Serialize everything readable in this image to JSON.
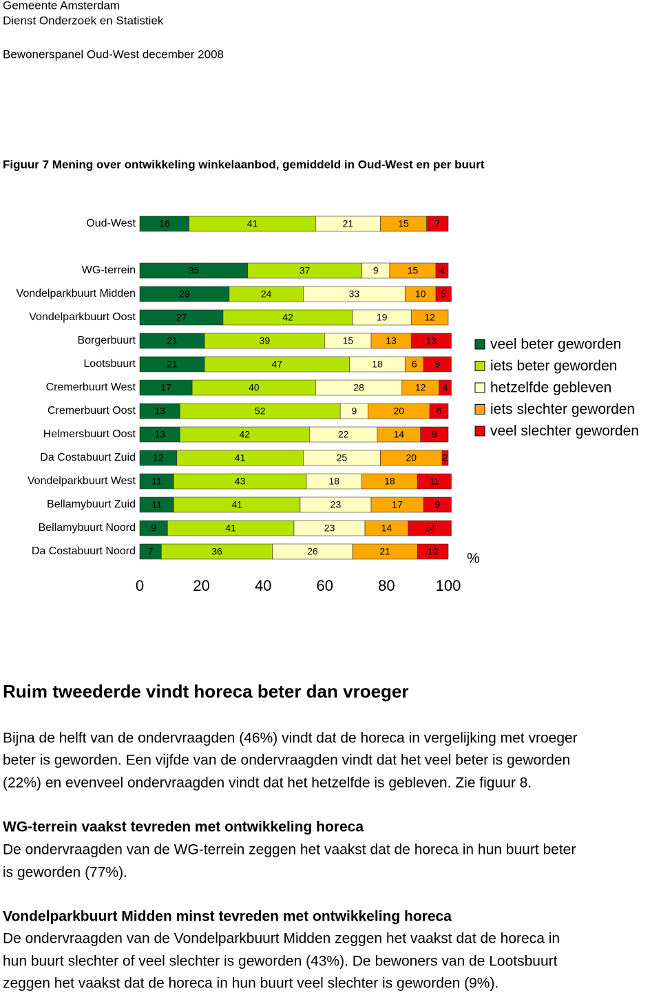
{
  "header": {
    "organization": "Gemeente Amsterdam",
    "department": "Dienst Onderzoek en Statistiek",
    "report": "Bewonerspanel Oud-West december 2008"
  },
  "chart_data": {
    "type": "bar",
    "orientation": "horizontal",
    "stacked": true,
    "title": "Figuur 7 Mening over ontwikkeling winkelaanbod, gemiddeld in Oud-West en per buurt",
    "x_label": "%",
    "categories": [
      "Oud-West",
      "WG-terrein",
      "Vondelparkbuurt Midden",
      "Vondelparkbuurt Oost",
      "Borgerbuurt",
      "Lootsbuurt",
      "Cremerbuurt West",
      "Cremerbuurt Oost",
      "Helmersbuurt Oost",
      "Da Costabuurt Zuid",
      "Vondelparkbuurt West",
      "Bellamybuurt Zuid",
      "Bellamybuurt Noord",
      "Da Costabuurt Noord"
    ],
    "series": [
      {
        "name": "veel beter geworden",
        "color": "#006a33",
        "values": [
          16,
          35,
          29,
          27,
          21,
          21,
          17,
          13,
          13,
          12,
          11,
          11,
          9,
          7
        ]
      },
      {
        "name": "iets beter geworden",
        "color": "#b5e300",
        "values": [
          41,
          37,
          24,
          42,
          39,
          47,
          40,
          52,
          42,
          41,
          43,
          41,
          41,
          36
        ]
      },
      {
        "name": "hetzelfde gebleven",
        "color": "#ffffc2",
        "values": [
          21,
          9,
          33,
          19,
          15,
          18,
          28,
          9,
          22,
          25,
          18,
          23,
          23,
          26
        ]
      },
      {
        "name": "iets slechter geworden",
        "color": "#ffa800",
        "values": [
          15,
          15,
          10,
          12,
          13,
          6,
          12,
          20,
          14,
          20,
          18,
          17,
          14,
          21
        ]
      },
      {
        "name": "veel slechter geworden",
        "color": "#e8000b",
        "values": [
          7,
          4,
          5,
          0,
          13,
          9,
          4,
          6,
          9,
          2,
          11,
          9,
          14,
          10
        ]
      }
    ],
    "xlim": [
      0,
      100
    ],
    "xticks": [
      0,
      20,
      40,
      60,
      80,
      100
    ],
    "grid": false,
    "legend": "right"
  },
  "sections": [
    {
      "heading": "Ruim tweederde vindt horeca beter dan vroeger",
      "lines": [
        "Bijna de helft van de ondervraagden (46%) vindt dat de horeca in vergelijking met vroeger",
        "beter is geworden. Een vijfde van de ondervraagden vindt dat het veel beter is geworden",
        "(22%) en evenveel ondervraagden vindt dat het hetzelfde is gebleven. Zie figuur 8."
      ]
    },
    {
      "heading": "WG-terrein vaakst tevreden met ontwikkeling horeca",
      "lines": [
        "De ondervraagden van de WG-terrein zeggen het vaakst dat de horeca in hun buurt beter",
        "is geworden (77%)."
      ]
    },
    {
      "heading": "Vondelparkbuurt Midden minst tevreden met ontwikkeling horeca",
      "lines": [
        "De ondervraagden van de Vondelparkbuurt Midden zeggen het vaakst dat de horeca in",
        "hun buurt slechter of veel slechter is geworden (43%). De bewoners van de Lootsbuurt",
        "zeggen het vaakst dat de horeca in hun buurt veel slechter is geworden (9%)."
      ]
    }
  ]
}
